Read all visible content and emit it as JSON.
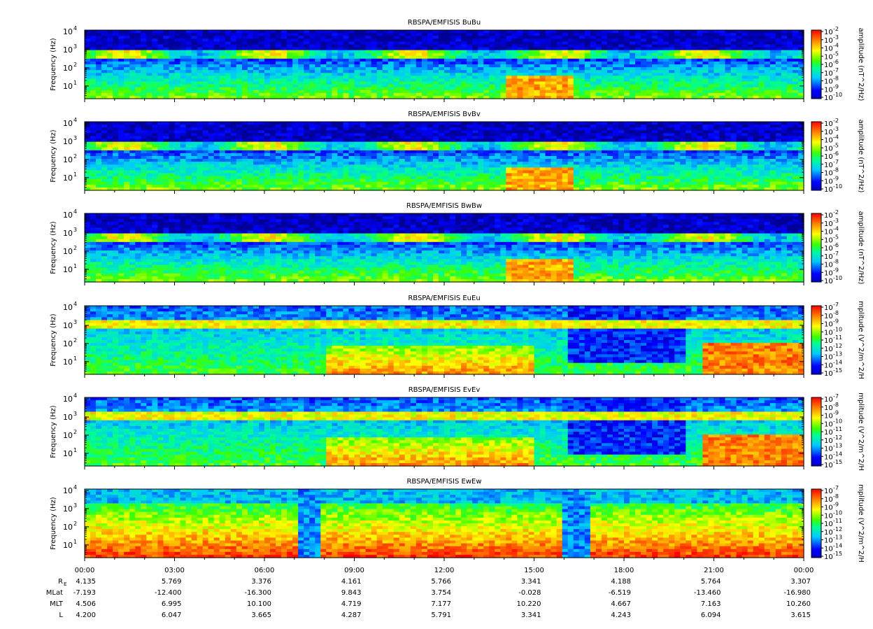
{
  "chart_data": {
    "type": "heatmap",
    "description_free": true,
    "panels": [
      {
        "title": "RBSPA/EMFISIS  BuBu",
        "ylabel": "Frequency (Hz)",
        "cbar_label": "amplitude (nT^2/Hz)",
        "cbar_exp": [
          -2,
          -3,
          -4,
          -5,
          -6,
          -7,
          -8,
          -9,
          -10
        ],
        "ylim": [
          2,
          12000
        ],
        "yscale": "log",
        "yticks": [
          "10",
          "10",
          "10",
          "10"
        ],
        "yexp": [
          "4",
          "3",
          "2",
          "1"
        ],
        "kind": "B"
      },
      {
        "title": "RBSPA/EMFISIS  BvBv",
        "ylabel": "Frequency (Hz)",
        "cbar_label": "amplitude (nT^2/Hz)",
        "cbar_exp": [
          -2,
          -3,
          -4,
          -5,
          -6,
          -7,
          -8,
          -9,
          -10
        ],
        "ylim": [
          2,
          12000
        ],
        "yscale": "log",
        "yticks": [
          "10",
          "10",
          "10",
          "10"
        ],
        "yexp": [
          "4",
          "3",
          "2",
          "1"
        ],
        "kind": "B"
      },
      {
        "title": "RBSPA/EMFISIS  BwBw",
        "ylabel": "Frequency (Hz)",
        "cbar_label": "amplitude (nT^2/Hz)",
        "cbar_exp": [
          -2,
          -3,
          -4,
          -5,
          -6,
          -7,
          -8,
          -9,
          -10
        ],
        "ylim": [
          2,
          12000
        ],
        "yscale": "log",
        "yticks": [
          "10",
          "10",
          "10",
          "10"
        ],
        "yexp": [
          "4",
          "3",
          "2",
          "1"
        ],
        "kind": "B"
      },
      {
        "title": "RBSPA/EMFISIS  EuEu",
        "ylabel": "Frequency (Hz)",
        "cbar_label": "mplitude (V^2/m^2/H",
        "cbar_exp": [
          -7,
          -8,
          -9,
          -10,
          -11,
          -12,
          -13,
          -14,
          -15
        ],
        "ylim": [
          2,
          12000
        ],
        "yscale": "log",
        "yticks": [
          "10",
          "10",
          "10",
          "10"
        ],
        "yexp": [
          "4",
          "3",
          "2",
          "1"
        ],
        "kind": "E"
      },
      {
        "title": "RBSPA/EMFISIS  EvEv",
        "ylabel": "Frequency (Hz)",
        "cbar_label": "mplitude (V^2/m^2/H",
        "cbar_exp": [
          -7,
          -8,
          -9,
          -10,
          -11,
          -12,
          -13,
          -14,
          -15
        ],
        "ylim": [
          2,
          12000
        ],
        "yscale": "log",
        "yticks": [
          "10",
          "10",
          "10",
          "10"
        ],
        "yexp": [
          "4",
          "3",
          "2",
          "1"
        ],
        "kind": "E"
      },
      {
        "title": "RBSPA/EMFISIS  EwEw",
        "ylabel": "Frequency (Hz)",
        "cbar_label": "mplitude (V^2/m^2/H",
        "cbar_exp": [
          -7,
          -8,
          -9,
          -10,
          -11,
          -12,
          -13,
          -14,
          -15
        ],
        "ylim": [
          2,
          12000
        ],
        "yscale": "log",
        "yticks": [
          "10",
          "10",
          "10",
          "10"
        ],
        "yexp": [
          "4",
          "3",
          "2",
          "1"
        ],
        "kind": "W"
      }
    ],
    "x": [
      "00:00",
      "03:00",
      "06:00",
      "09:00",
      "12:00",
      "15:00",
      "18:00",
      "21:00",
      "00:00"
    ],
    "xlim_hours": [
      0,
      24
    ],
    "ephemeris": [
      {
        "label": "R",
        "sub": "E",
        "values": [
          "4.135",
          "5.769",
          "3.376",
          "4.161",
          "5.766",
          "3.341",
          "4.188",
          "5.764",
          "3.307"
        ]
      },
      {
        "label": "MLat",
        "sub": "",
        "values": [
          "-7.193",
          "-12.400",
          "-16.300",
          "9.843",
          "3.754",
          "-0.028",
          "-6.519",
          "-13.460",
          "-16.980"
        ]
      },
      {
        "label": "MLT",
        "sub": "",
        "values": [
          "4.506",
          "6.995",
          "10.100",
          "4.719",
          "7.177",
          "10.220",
          "4.667",
          "7.163",
          "10.260"
        ]
      },
      {
        "label": "L",
        "sub": "",
        "values": [
          "4.200",
          "6.047",
          "3.665",
          "4.287",
          "5.791",
          "3.341",
          "4.243",
          "6.094",
          "3.615"
        ]
      }
    ]
  }
}
